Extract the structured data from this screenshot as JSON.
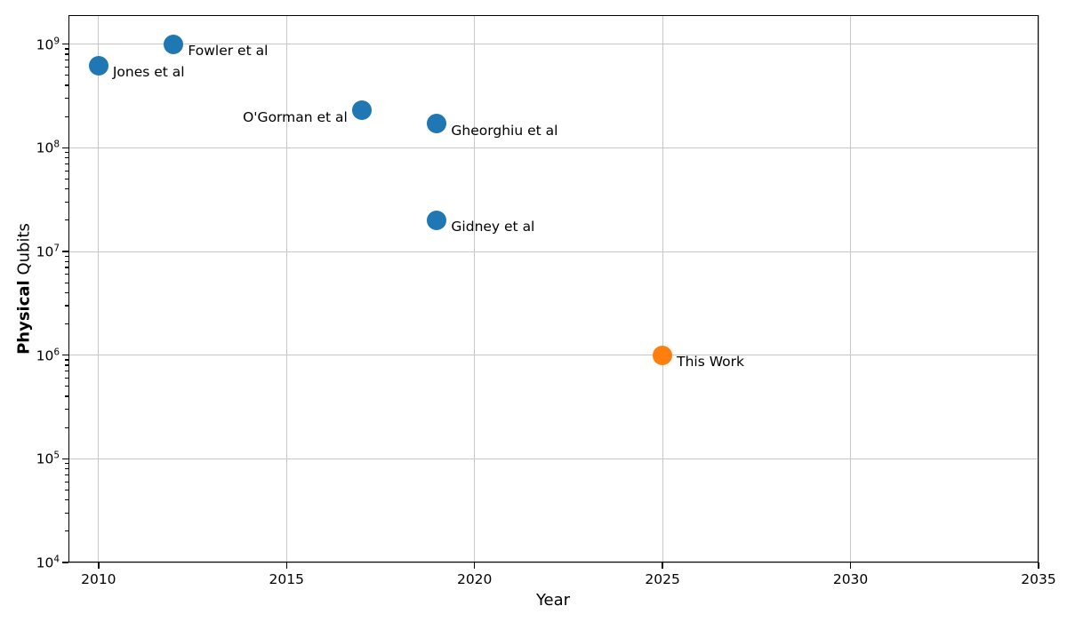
{
  "chart_data": {
    "type": "scatter",
    "title": "",
    "xlabel": "Year",
    "ylabel": "Physical Qubits",
    "ylabel_bold": "Physical",
    "ylabel_rest": " Qubits",
    "x_ticks": [
      2010,
      2015,
      2020,
      2025,
      2030,
      2035
    ],
    "y_tick_exponents": [
      4,
      5,
      6,
      7,
      8,
      9
    ],
    "xlim": [
      2009.2,
      2035
    ],
    "ylim_log": [
      4,
      9.28
    ],
    "grid": true,
    "legend": "none",
    "points": [
      {
        "label": "Jones et al",
        "year": 2010,
        "qubits": 620000000,
        "color": "blue",
        "label_side": "right"
      },
      {
        "label": "Fowler et al",
        "year": 2012,
        "qubits": 1000000000,
        "color": "blue",
        "label_side": "right"
      },
      {
        "label": "O'Gorman et al",
        "year": 2017,
        "qubits": 230000000,
        "color": "blue",
        "label_side": "left"
      },
      {
        "label": "Gheorghiu et al",
        "year": 2019,
        "qubits": 170000000,
        "color": "blue",
        "label_side": "right"
      },
      {
        "label": "Gidney et al",
        "year": 2019,
        "qubits": 20000000,
        "color": "blue",
        "label_side": "right"
      },
      {
        "label": "This Work",
        "year": 2025,
        "qubits": 1000000,
        "color": "orange",
        "label_side": "right"
      }
    ],
    "colors": {
      "blue": "#1f77b4",
      "orange": "#ff7f0e",
      "grid": "#c6c6c6",
      "spine": "#000000"
    }
  }
}
